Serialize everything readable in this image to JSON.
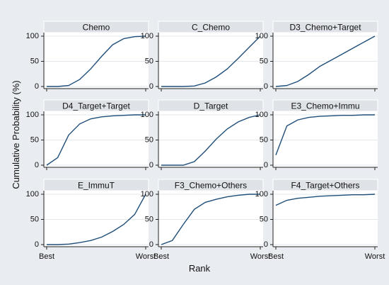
{
  "figure": {
    "ylabel": "Cumulative Probability (%)",
    "xlabel": "Rank",
    "background": "#e9ecf0",
    "line_color": "#1f4e79"
  },
  "chart_data": {
    "type": "line",
    "layout": "3x3 panel grid",
    "grid": true,
    "ylim": [
      0,
      100
    ],
    "yticks": [
      0,
      50,
      100
    ],
    "x_tick_labels": [
      "Best",
      "Worst"
    ],
    "x": [
      1,
      2,
      3,
      4,
      5,
      6,
      7,
      8,
      9,
      10
    ],
    "panels": [
      {
        "title": "Chemo",
        "values": [
          0,
          0,
          2,
          14,
          35,
          60,
          83,
          95,
          99,
          100
        ]
      },
      {
        "title": "C_Chemo",
        "values": [
          0,
          0,
          0,
          1,
          7,
          19,
          35,
          56,
          78,
          100
        ]
      },
      {
        "title": "D3_Chemo+Target",
        "values": [
          0,
          2,
          10,
          24,
          40,
          52,
          64,
          76,
          88,
          100
        ]
      },
      {
        "title": "D4_Target+Target",
        "values": [
          0,
          15,
          60,
          82,
          92,
          96,
          98,
          99,
          100,
          100
        ]
      },
      {
        "title": "D_Target",
        "values": [
          0,
          0,
          0,
          7,
          28,
          52,
          72,
          86,
          95,
          100
        ]
      },
      {
        "title": "E3_Chemo+Immu",
        "values": [
          20,
          78,
          90,
          95,
          97,
          98,
          99,
          99,
          100,
          100
        ]
      },
      {
        "title": "E_ImmuT",
        "values": [
          0,
          0,
          1,
          4,
          8,
          15,
          26,
          40,
          60,
          100
        ]
      },
      {
        "title": "F3_Chemo+Others",
        "values": [
          0,
          8,
          40,
          70,
          84,
          90,
          95,
          98,
          100,
          100
        ]
      },
      {
        "title": "F4_Target+Others",
        "values": [
          78,
          88,
          92,
          94,
          96,
          97,
          98,
          99,
          99,
          100
        ]
      }
    ]
  }
}
